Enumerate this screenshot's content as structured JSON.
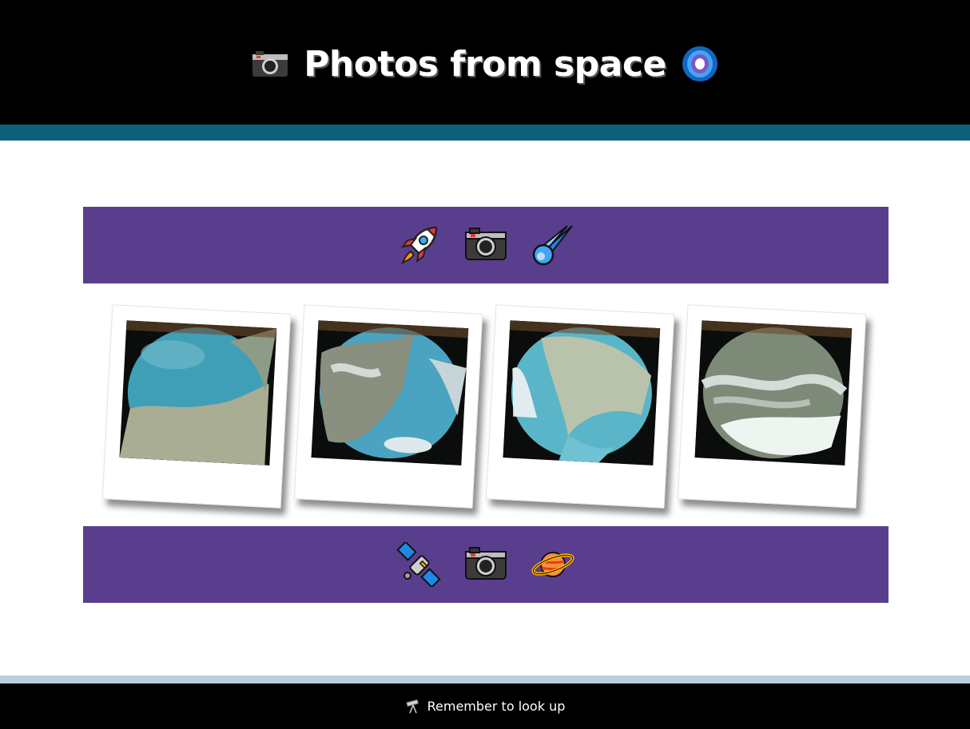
{
  "header": {
    "title": "Photos from space",
    "left_icon": "camera-icon",
    "right_icon": "galaxy-icon",
    "background": "#000000",
    "stripe_color": "#0e6079"
  },
  "top_band": {
    "icons": [
      "rocket-icon",
      "camera-icon",
      "comet-icon"
    ],
    "color": "#5a3e8e"
  },
  "photos": [
    {
      "subject": "earth-coastline-photo"
    },
    {
      "subject": "earth-mountains-coast-photo"
    },
    {
      "subject": "earth-peninsula-photo"
    },
    {
      "subject": "earth-snowy-mountains-photo"
    }
  ],
  "bottom_band": {
    "icons": [
      "satellite-icon",
      "camera-icon",
      "planet-icon"
    ],
    "color": "#5a3e8e"
  },
  "footer": {
    "icon": "telescope-icon",
    "text": "Remember to look up",
    "stripe_color": "#b9cfdc"
  }
}
